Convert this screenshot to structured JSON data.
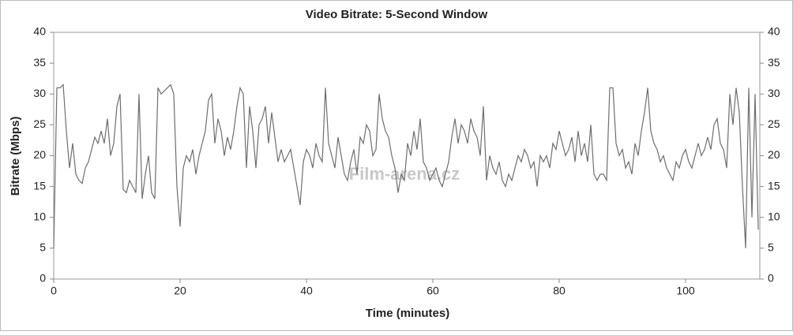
{
  "chart_data": {
    "type": "line",
    "title": "Video Bitrate: 5-Second Window",
    "x_label": "Time (minutes)",
    "y_label": "Bitrate (Mbps)",
    "watermark": "Film-arena.cz",
    "x": [
      0,
      0.5,
      1,
      1.5,
      2,
      2.5,
      3,
      3.5,
      4,
      4.5,
      5,
      5.5,
      6,
      6.5,
      7,
      7.5,
      8,
      8.5,
      9,
      9.5,
      10,
      10.5,
      11,
      11.5,
      12,
      12.5,
      13,
      13.5,
      14,
      14.5,
      15,
      15.5,
      16,
      16.5,
      17,
      17.5,
      18,
      18.5,
      19,
      19.5,
      20,
      20.5,
      21,
      21.5,
      22,
      22.5,
      23,
      23.5,
      24,
      24.5,
      25,
      25.5,
      26,
      26.5,
      27,
      27.5,
      28,
      28.5,
      29,
      29.5,
      30,
      30.5,
      31,
      31.5,
      32,
      32.5,
      33,
      33.5,
      34,
      34.5,
      35,
      35.5,
      36,
      36.5,
      37,
      37.5,
      38,
      38.5,
      39,
      39.5,
      40,
      40.5,
      41,
      41.5,
      42,
      42.5,
      43,
      43.5,
      44,
      44.5,
      45,
      45.5,
      46,
      46.5,
      47,
      47.5,
      48,
      48.5,
      49,
      49.5,
      50,
      50.5,
      51,
      51.5,
      52,
      52.5,
      53,
      53.5,
      54,
      54.5,
      55,
      55.5,
      56,
      56.5,
      57,
      57.5,
      58,
      58.5,
      59,
      59.5,
      60,
      60.5,
      61,
      61.5,
      62,
      62.5,
      63,
      63.5,
      64,
      64.5,
      65,
      65.5,
      66,
      66.5,
      67,
      67.5,
      68,
      68.5,
      69,
      69.5,
      70,
      70.5,
      71,
      71.5,
      72,
      72.5,
      73,
      73.5,
      74,
      74.5,
      75,
      75.5,
      76,
      76.5,
      77,
      77.5,
      78,
      78.5,
      79,
      79.5,
      80,
      80.5,
      81,
      81.5,
      82,
      82.5,
      83,
      83.5,
      84,
      84.5,
      85,
      85.5,
      86,
      86.5,
      87,
      87.5,
      88,
      88.5,
      89,
      89.5,
      90,
      90.5,
      91,
      91.5,
      92,
      92.5,
      93,
      93.5,
      94,
      94.5,
      95,
      95.5,
      96,
      96.5,
      97,
      97.5,
      98,
      98.5,
      99,
      99.5,
      100,
      100.5,
      101,
      101.5,
      102,
      102.5,
      103,
      103.5,
      104,
      104.5,
      105,
      105.5,
      106,
      106.5,
      107,
      107.5,
      108,
      108.5,
      109,
      109.5,
      110,
      110.5,
      111,
      111.5
    ],
    "series": [
      {
        "color": "#6e6e6e",
        "values": [
          5,
          31,
          31,
          31.5,
          24,
          18,
          22,
          17,
          16,
          15.5,
          18,
          19,
          21,
          23,
          22,
          24,
          22,
          26,
          20,
          22,
          28,
          30,
          14.5,
          14,
          16,
          15,
          14,
          30,
          13,
          17,
          20,
          14,
          13,
          31,
          30,
          30.5,
          31,
          31.5,
          30,
          15,
          8.5,
          18,
          20,
          19,
          21,
          17,
          20,
          22,
          24,
          29,
          30,
          22,
          26,
          24,
          20,
          23,
          21,
          24,
          28,
          31,
          30,
          18,
          28,
          24,
          18,
          25,
          26,
          28,
          22,
          27,
          23,
          19,
          21,
          19,
          20,
          21,
          18,
          15,
          12,
          19,
          21,
          20,
          18,
          22,
          20,
          19,
          31,
          22,
          20,
          18,
          23,
          20,
          17,
          16,
          19,
          21,
          17,
          23,
          22,
          25,
          24,
          20,
          21,
          30,
          26,
          24,
          23,
          20,
          18,
          14,
          17,
          16,
          22,
          20,
          24,
          21,
          26,
          19,
          18,
          16,
          17,
          18,
          16,
          15,
          17,
          19,
          23,
          26,
          22,
          25,
          24,
          22,
          26,
          24,
          23,
          20,
          28,
          16,
          20,
          18,
          17,
          19,
          16,
          15,
          17,
          16,
          18,
          20,
          19,
          21,
          20,
          18,
          19,
          15,
          20,
          19,
          20,
          18,
          22,
          21,
          24,
          22,
          20,
          21,
          23,
          19,
          24,
          20,
          22,
          19,
          25,
          17,
          16,
          17,
          17,
          16,
          31,
          31,
          22,
          20,
          21,
          18,
          19,
          17,
          22,
          20,
          24,
          27,
          31,
          24,
          22,
          21,
          19,
          20,
          18,
          17,
          16,
          19,
          18,
          20,
          21,
          19,
          18,
          20,
          22,
          20,
          21,
          23,
          21,
          25,
          26,
          22,
          21,
          18,
          30,
          25,
          31,
          27,
          15,
          5,
          31,
          10,
          30,
          8
        ]
      }
    ],
    "xlim": [
      0,
      111.75
    ],
    "xticks": [
      0,
      20,
      40,
      60,
      80,
      100
    ],
    "ylim": [
      0,
      40
    ],
    "yticks": [
      0,
      5,
      10,
      15,
      20,
      25,
      30,
      35,
      40
    ],
    "y2lim": [
      0,
      40
    ],
    "y2ticks": [
      0,
      5,
      10,
      15,
      20,
      25,
      30,
      35,
      40
    ],
    "grid": false
  }
}
